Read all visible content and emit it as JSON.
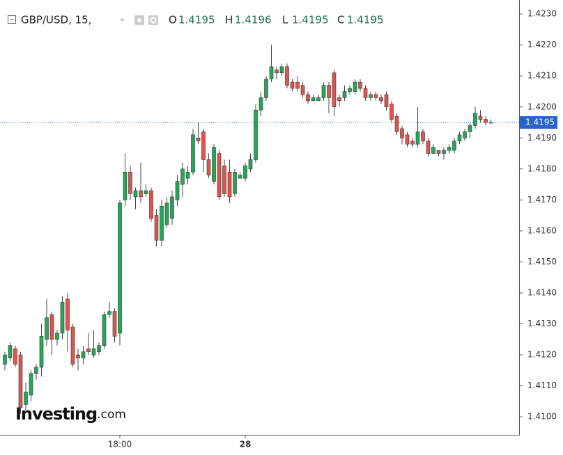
{
  "chart_data": {
    "type": "candlestick",
    "header": {
      "symbol": "GBP/USD, 15,",
      "ohlc": [
        {
          "label": "O",
          "value": 1.4195
        },
        {
          "label": "H",
          "value": 1.4196
        },
        {
          "label": "L",
          "value": 1.4195
        },
        {
          "label": "C",
          "value": 1.4195
        }
      ]
    },
    "watermark": {
      "brand": "Investing",
      "suffix": ".com"
    },
    "up_color": "#26a65b",
    "down_color": "#e0544e",
    "price_line": {
      "value": 1.4195,
      "color": "#2962c9"
    },
    "categories": [
      null,
      null,
      null,
      null,
      null,
      null,
      null,
      null,
      null,
      null,
      null,
      null,
      null,
      null,
      null,
      null,
      null,
      null,
      null,
      null,
      null,
      null,
      "18:00",
      null,
      null,
      null,
      null,
      null,
      null,
      null,
      null,
      null,
      null,
      null,
      null,
      null,
      null,
      null,
      null,
      null,
      null,
      null,
      null,
      null,
      null,
      null,
      "28",
      null,
      null,
      null,
      null,
      null,
      null,
      null,
      null,
      null,
      null,
      null,
      null,
      null,
      null,
      null,
      null,
      null,
      null,
      null,
      null,
      null,
      null,
      null,
      null,
      null,
      null,
      null,
      null,
      null,
      null,
      null,
      null,
      null,
      null,
      null,
      null,
      null,
      null,
      null,
      null,
      null,
      null,
      null,
      null,
      null,
      null,
      null
    ],
    "open": [
      1.4117,
      1.4119,
      1.4122,
      1.412,
      1.4104,
      1.4107,
      1.4114,
      1.4116,
      1.4125,
      1.4133,
      1.4125,
      1.4127,
      1.4138,
      1.4129,
      1.412,
      1.4119,
      1.4122,
      1.412,
      1.4121,
      1.4123,
      1.4133,
      1.4134,
      1.4127,
      1.417,
      1.4179,
      1.4171,
      1.4173,
      1.4172,
      1.4173,
      1.4165,
      1.4157,
      1.4162,
      1.4164,
      1.417,
      1.4175,
      1.4177,
      1.4179,
      1.419,
      1.4192,
      1.4183,
      1.4176,
      1.4185,
      1.4181,
      1.4179,
      1.4172,
      1.4177,
      1.4177,
      1.418,
      1.4183,
      1.4199,
      1.4203,
      1.4209,
      1.4212,
      1.4211,
      1.4213,
      1.4208,
      1.4208,
      1.4207,
      1.4204,
      1.4202,
      1.4202,
      1.4203,
      1.4207,
      1.4211,
      1.4203,
      1.4203,
      1.4205,
      1.4205,
      1.4208,
      1.4206,
      1.4203,
      1.4204,
      1.4203,
      1.4204,
      1.4201,
      1.4197,
      1.4193,
      1.4191,
      1.4189,
      1.4188,
      1.4192,
      1.4189,
      1.4185,
      1.4186,
      1.4185,
      1.4186,
      1.4186,
      1.4189,
      1.419,
      1.4192,
      1.4194,
      1.4197,
      1.4196,
      1.4195
    ],
    "high": [
      1.4121,
      1.4124,
      1.4123,
      1.4121,
      1.4111,
      1.4115,
      1.4117,
      1.413,
      1.4138,
      1.4134,
      1.4128,
      1.4139,
      1.414,
      1.413,
      1.4122,
      1.4123,
      1.4127,
      1.4128,
      1.4124,
      1.4134,
      1.4137,
      1.4135,
      1.417,
      1.4185,
      1.4181,
      1.4174,
      1.4182,
      1.4175,
      1.4174,
      1.4167,
      1.417,
      1.4171,
      1.4173,
      1.4178,
      1.4182,
      1.4181,
      1.4193,
      1.4195,
      1.4193,
      1.4185,
      1.4188,
      1.4186,
      1.4183,
      1.4183,
      1.418,
      1.4179,
      1.4182,
      1.4185,
      1.4201,
      1.4205,
      1.421,
      1.422,
      1.4213,
      1.4214,
      1.4214,
      1.4209,
      1.421,
      1.4208,
      1.4205,
      1.4204,
      1.4204,
      1.4208,
      1.4208,
      1.4212,
      1.4204,
      1.4207,
      1.4207,
      1.4209,
      1.4209,
      1.4207,
      1.4205,
      1.4205,
      1.4204,
      1.4205,
      1.4202,
      1.4198,
      1.4194,
      1.4192,
      1.419,
      1.42,
      1.4193,
      1.419,
      1.4188,
      1.4186,
      1.4187,
      1.4188,
      1.419,
      1.4192,
      1.4193,
      1.4195,
      1.42,
      1.4199,
      1.4197,
      1.4196
    ],
    "low": [
      1.4115,
      1.4118,
      1.4116,
      1.4101,
      1.4102,
      1.4105,
      1.4112,
      1.4113,
      1.4123,
      1.412,
      1.4123,
      1.4125,
      1.4121,
      1.4116,
      1.4115,
      1.4117,
      1.412,
      1.4119,
      1.412,
      1.4122,
      1.4132,
      1.4124,
      1.4123,
      1.4168,
      1.417,
      1.4167,
      1.4169,
      1.4171,
      1.4163,
      1.4155,
      1.4155,
      1.4161,
      1.4162,
      1.4168,
      1.4171,
      1.4175,
      1.4178,
      1.4188,
      1.4179,
      1.4177,
      1.4175,
      1.417,
      1.4171,
      1.4169,
      1.4171,
      1.4177,
      1.4176,
      1.4179,
      1.4182,
      1.4197,
      1.4202,
      1.4208,
      1.4209,
      1.421,
      1.4206,
      1.4205,
      1.4205,
      1.4203,
      1.4201,
      1.4202,
      1.4202,
      1.4202,
      1.4198,
      1.4197,
      1.42,
      1.4202,
      1.4204,
      1.4204,
      1.4205,
      1.4202,
      1.4202,
      1.4202,
      1.4201,
      1.4199,
      1.4195,
      1.4191,
      1.4188,
      1.4187,
      1.4187,
      1.4187,
      1.4188,
      1.4184,
      1.4185,
      1.4184,
      1.4183,
      1.4185,
      1.4185,
      1.4188,
      1.4189,
      1.419,
      1.4193,
      1.4195,
      1.4194,
      1.4195
    ],
    "close": [
      1.412,
      1.4123,
      1.4117,
      1.4103,
      1.4108,
      1.4114,
      1.4116,
      1.4126,
      1.4132,
      1.4125,
      1.4127,
      1.4137,
      1.4128,
      1.4117,
      1.4119,
      1.4121,
      1.4121,
      1.4122,
      1.4123,
      1.4133,
      1.4134,
      1.4126,
      1.4169,
      1.4179,
      1.4172,
      1.4173,
      1.4171,
      1.4173,
      1.4164,
      1.4157,
      1.4168,
      1.4169,
      1.4171,
      1.4176,
      1.418,
      1.4179,
      1.4191,
      1.4189,
      1.4183,
      1.4178,
      1.4187,
      1.4171,
      1.4172,
      1.4171,
      1.4179,
      1.4178,
      1.4181,
      1.4183,
      1.4199,
      1.4203,
      1.4209,
      1.4213,
      1.4211,
      1.4213,
      1.4207,
      1.4206,
      1.4206,
      1.4204,
      1.4202,
      1.4203,
      1.4203,
      1.4207,
      1.4203,
      1.42,
      1.4202,
      1.4205,
      1.4206,
      1.4208,
      1.4206,
      1.4203,
      1.4204,
      1.4203,
      1.4202,
      1.42,
      1.4196,
      1.4192,
      1.419,
      1.4188,
      1.4188,
      1.4192,
      1.4189,
      1.4185,
      1.4187,
      1.4185,
      1.4186,
      1.4187,
      1.4189,
      1.4191,
      1.4192,
      1.4194,
      1.4198,
      1.4196,
      1.4195,
      1.4195
    ],
    "ylim": [
      1.40942,
      1.42334
    ],
    "yticks": [
      {
        "value": 1.41,
        "label": "1.4100"
      },
      {
        "value": 1.411,
        "label": "1.4110"
      },
      {
        "value": 1.412,
        "label": "1.4120"
      },
      {
        "value": 1.413,
        "label": "1.4130"
      },
      {
        "value": 1.414,
        "label": "1.4140"
      },
      {
        "value": 1.415,
        "label": "1.4150"
      },
      {
        "value": 1.416,
        "label": "1.4160"
      },
      {
        "value": 1.417,
        "label": "1.4170"
      },
      {
        "value": 1.418,
        "label": "1.4180"
      },
      {
        "value": 1.419,
        "label": "1.4190"
      },
      {
        "value": 1.42,
        "label": "1.4200"
      },
      {
        "value": 1.421,
        "label": "1.4210"
      },
      {
        "value": 1.422,
        "label": "1.4220"
      },
      {
        "value": 1.423,
        "label": "1.4230"
      }
    ]
  }
}
